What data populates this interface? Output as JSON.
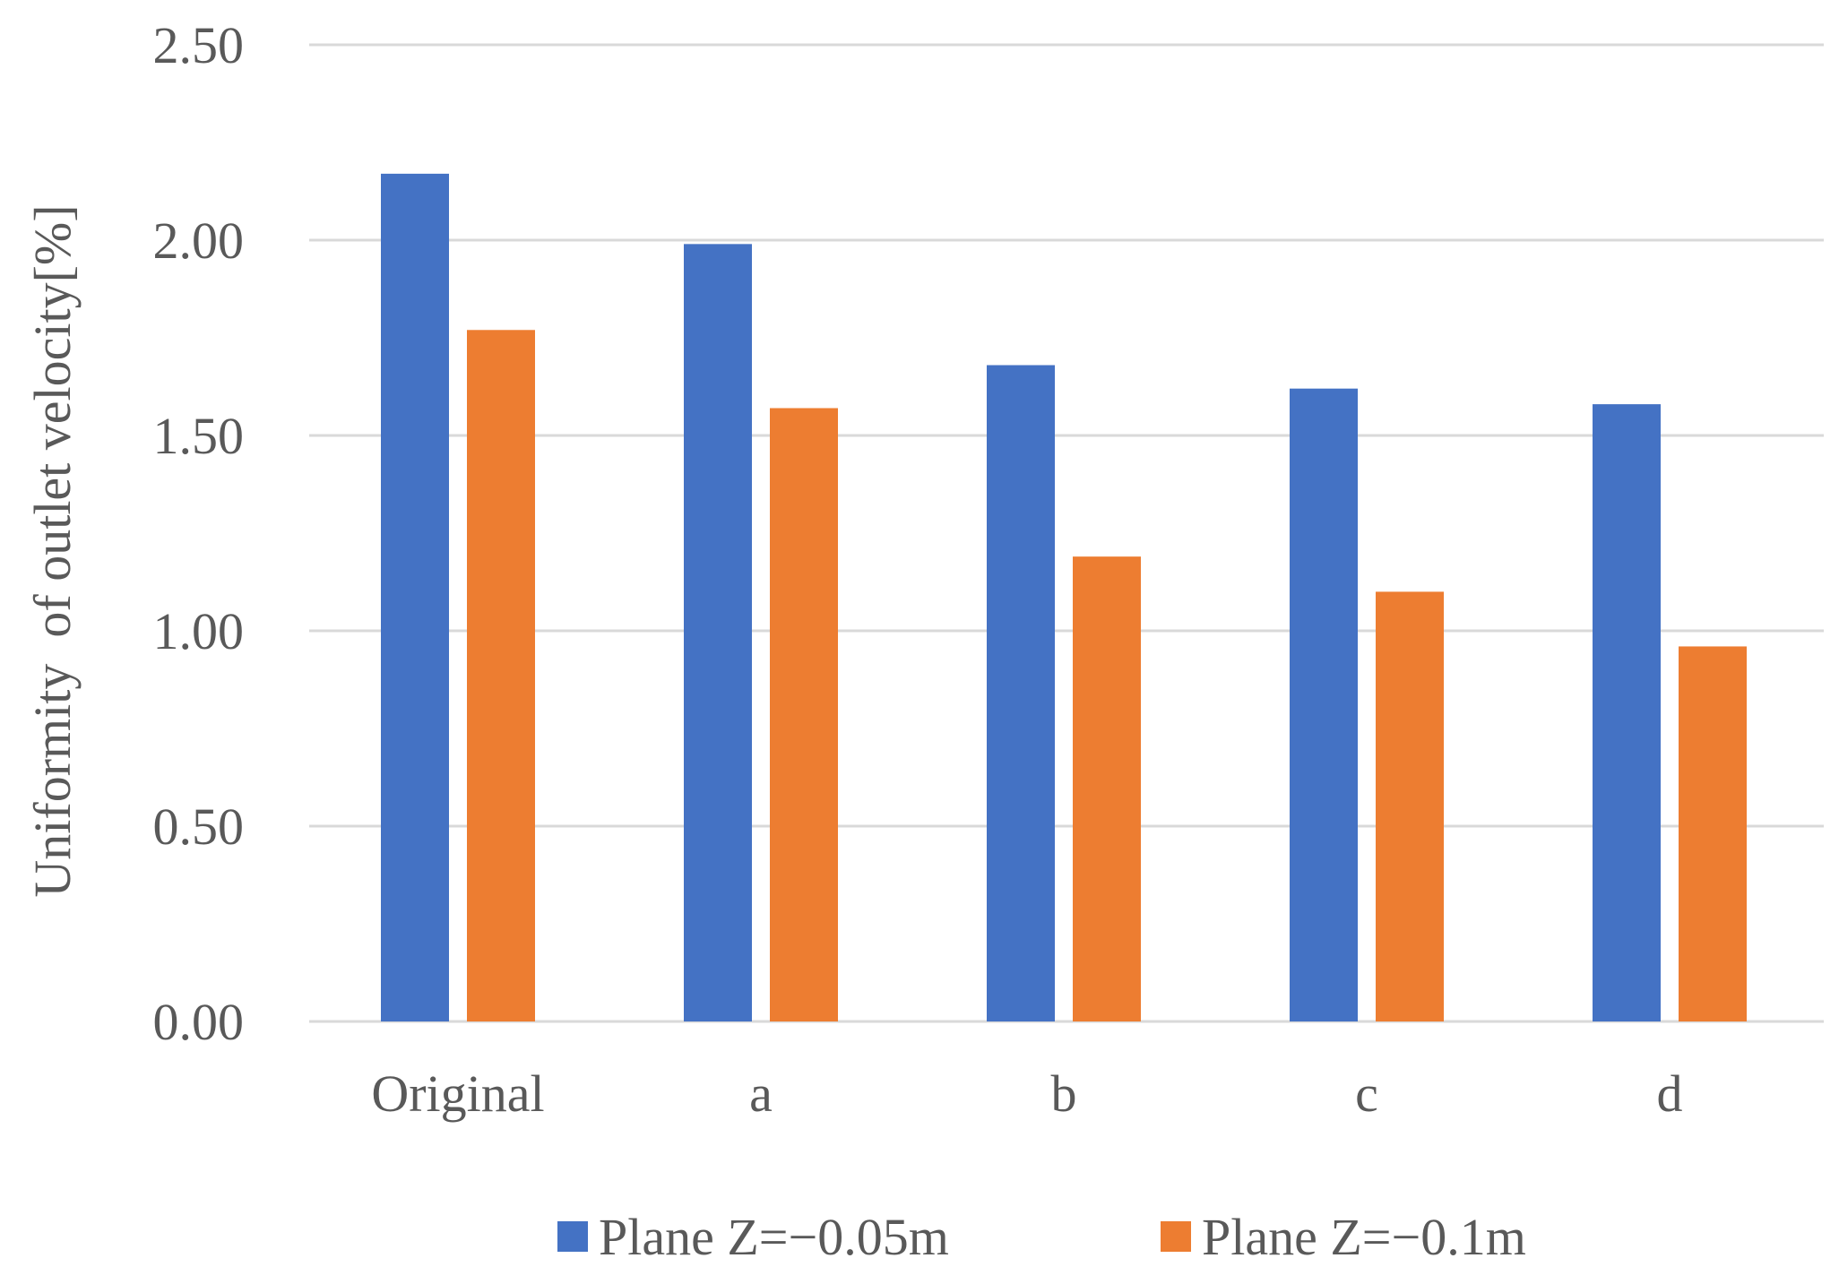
{
  "chart_data": {
    "type": "bar",
    "categories": [
      "Original",
      "a",
      "b",
      "c",
      "d"
    ],
    "series": [
      {
        "name": "Plane Z=−0.05m",
        "color": "#4472C4",
        "values": [
          2.17,
          1.99,
          1.68,
          1.62,
          1.58
        ]
      },
      {
        "name": "Plane Z=−0.1m",
        "color": "#ED7D31",
        "values": [
          1.77,
          1.57,
          1.19,
          1.1,
          0.96
        ]
      }
    ],
    "title": "",
    "xlabel": "",
    "ylabel": "Uniformity  of outlet velocity[%]",
    "ylim": [
      0,
      2.5
    ],
    "yticks": [
      "0.00",
      "0.50",
      "1.00",
      "1.50",
      "2.00",
      "2.50"
    ],
    "grid": true,
    "legend_position": "bottom"
  }
}
